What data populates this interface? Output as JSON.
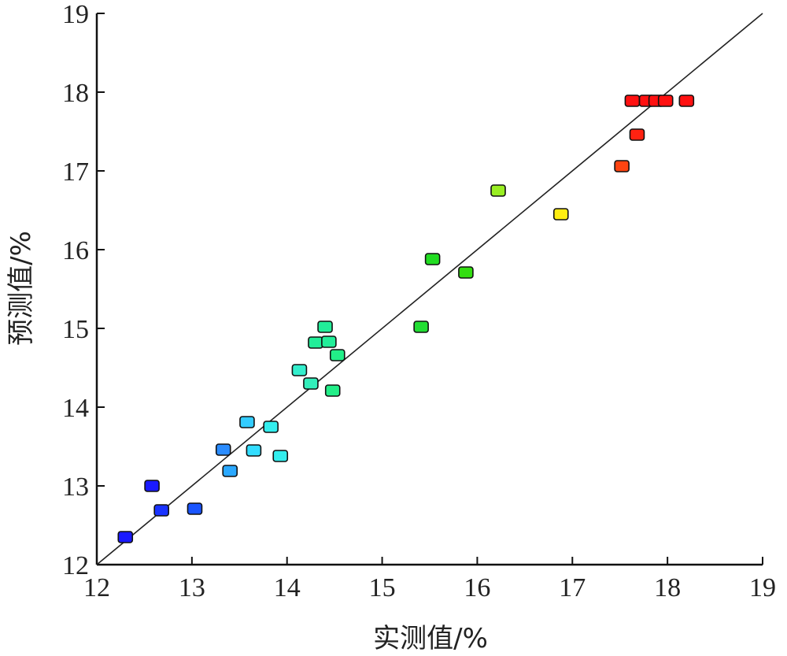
{
  "chart_data": {
    "type": "scatter",
    "xlabel": "实测值/%",
    "ylabel": "预测值/%",
    "xlim": [
      12,
      19
    ],
    "ylim": [
      12,
      19
    ],
    "x_ticks": [
      "12",
      "13",
      "14",
      "15",
      "16",
      "17",
      "18",
      "19"
    ],
    "y_ticks": [
      "12",
      "13",
      "14",
      "15",
      "16",
      "17",
      "18",
      "19"
    ],
    "grid": false,
    "reference_line": {
      "from": [
        12,
        12
      ],
      "to": [
        19,
        19
      ]
    },
    "marker_colormap": "blue-to-red by measured value",
    "points": [
      {
        "x": 12.3,
        "y": 12.35,
        "color": "#1a1aff"
      },
      {
        "x": 12.58,
        "y": 13.0,
        "color": "#1a1aff"
      },
      {
        "x": 12.68,
        "y": 12.69,
        "color": "#1a33ff"
      },
      {
        "x": 13.03,
        "y": 12.71,
        "color": "#1a55ff"
      },
      {
        "x": 13.33,
        "y": 13.46,
        "color": "#2a8cff"
      },
      {
        "x": 13.4,
        "y": 13.19,
        "color": "#2aa8ff"
      },
      {
        "x": 13.58,
        "y": 13.81,
        "color": "#33ccff"
      },
      {
        "x": 13.65,
        "y": 13.45,
        "color": "#33ddff"
      },
      {
        "x": 13.83,
        "y": 13.75,
        "color": "#33eeee"
      },
      {
        "x": 13.93,
        "y": 13.38,
        "color": "#33eeee"
      },
      {
        "x": 14.13,
        "y": 14.47,
        "color": "#33eecc"
      },
      {
        "x": 14.25,
        "y": 14.3,
        "color": "#33eebb"
      },
      {
        "x": 14.3,
        "y": 14.82,
        "color": "#22ee99"
      },
      {
        "x": 14.4,
        "y": 15.02,
        "color": "#22ee99"
      },
      {
        "x": 14.44,
        "y": 14.83,
        "color": "#22ee99"
      },
      {
        "x": 14.48,
        "y": 14.21,
        "color": "#22ee88"
      },
      {
        "x": 14.53,
        "y": 14.66,
        "color": "#22ee88"
      },
      {
        "x": 15.41,
        "y": 15.02,
        "color": "#22dd33"
      },
      {
        "x": 15.53,
        "y": 15.88,
        "color": "#22dd22"
      },
      {
        "x": 15.88,
        "y": 15.71,
        "color": "#33dd11"
      },
      {
        "x": 16.22,
        "y": 16.75,
        "color": "#99ee22"
      },
      {
        "x": 16.88,
        "y": 16.45,
        "color": "#ffee11"
      },
      {
        "x": 17.52,
        "y": 17.06,
        "color": "#ff4411"
      },
      {
        "x": 17.68,
        "y": 17.46,
        "color": "#ff2211"
      },
      {
        "x": 17.63,
        "y": 17.89,
        "color": "#ff1111"
      },
      {
        "x": 17.78,
        "y": 17.89,
        "color": "#ff1111"
      },
      {
        "x": 17.88,
        "y": 17.89,
        "color": "#ff1111"
      },
      {
        "x": 17.98,
        "y": 17.89,
        "color": "#ff1111"
      },
      {
        "x": 18.2,
        "y": 17.89,
        "color": "#ff1111"
      }
    ]
  }
}
